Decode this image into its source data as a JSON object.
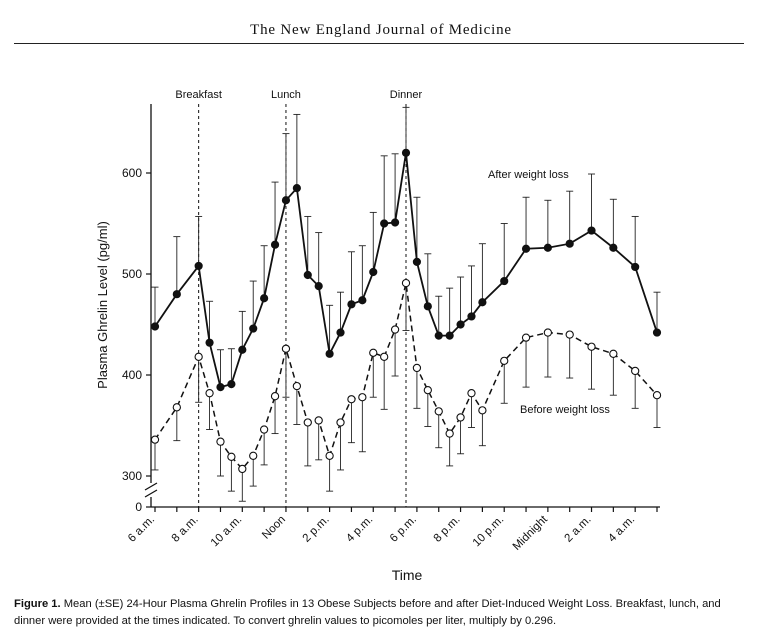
{
  "header": {
    "journal_title": "The New England Journal of Medicine"
  },
  "chart_data": {
    "type": "line",
    "xlabel": "Time",
    "ylabel": "Plasma Ghrelin Level (pg/ml)",
    "x_tick_labels": [
      "6 a.m.",
      "8 a.m.",
      "10 a.m.",
      "Noon",
      "2 p.m.",
      "4 p.m.",
      "6 p.m.",
      "8 p.m.",
      "10 p.m.",
      "Midnight",
      "2 a.m.",
      "4 a.m."
    ],
    "x_tick_hours": [
      6,
      8,
      10,
      12,
      14,
      16,
      18,
      20,
      22,
      24,
      26,
      28
    ],
    "xlim_hours": [
      6,
      29
    ],
    "yticks": [
      300,
      400,
      500,
      600
    ],
    "y_zero_label": "0",
    "ylim": [
      300,
      670
    ],
    "axis_break": true,
    "meals": [
      {
        "label": "Breakfast",
        "hour": 8
      },
      {
        "label": "Lunch",
        "hour": 12
      },
      {
        "label": "Dinner",
        "hour": 17.5
      }
    ],
    "series": [
      {
        "name": "After weight loss",
        "style": "solid-line-filled-circles",
        "x": [
          6,
          7,
          8,
          8.5,
          9,
          9.5,
          10,
          10.5,
          11,
          11.5,
          12,
          12.5,
          13,
          13.5,
          14,
          14.5,
          15,
          15.5,
          16,
          16.5,
          17,
          17.5,
          18,
          18.5,
          19,
          19.5,
          20,
          20.5,
          21,
          22,
          23,
          24,
          25,
          26,
          27,
          28,
          29
        ],
        "y": [
          448,
          480,
          508,
          432,
          388,
          391,
          425,
          446,
          476,
          529,
          573,
          585,
          499,
          488,
          421,
          442,
          470,
          474,
          502,
          550,
          551,
          620,
          512,
          468,
          439,
          439,
          450,
          458,
          472,
          493,
          525,
          526,
          530,
          543,
          526,
          507,
          442
        ],
        "se_upper": [
          487,
          537,
          557,
          473,
          425,
          426,
          463,
          493,
          528,
          591,
          639,
          658,
          557,
          541,
          469,
          482,
          522,
          528,
          561,
          617,
          619,
          665,
          576,
          520,
          478,
          486,
          497,
          508,
          530,
          550,
          576,
          573,
          582,
          599,
          574,
          557,
          482
        ]
      },
      {
        "name": "Before weight loss",
        "style": "dashed-line-open-circles",
        "x": [
          6,
          7,
          8,
          8.5,
          9,
          9.5,
          10,
          10.5,
          11,
          11.5,
          12,
          12.5,
          13,
          13.5,
          14,
          14.5,
          15,
          15.5,
          16,
          16.5,
          17,
          17.5,
          18,
          18.5,
          19,
          19.5,
          20,
          20.5,
          21,
          22,
          23,
          24,
          25,
          26,
          27,
          28,
          29
        ],
        "y": [
          336,
          368,
          418,
          382,
          334,
          319,
          307,
          320,
          346,
          379,
          426,
          389,
          353,
          355,
          320,
          353,
          376,
          378,
          422,
          418,
          445,
          491,
          407,
          385,
          364,
          342,
          358,
          382,
          365,
          414,
          437,
          442,
          440,
          428,
          421,
          404,
          380
        ],
        "se_lower": [
          306,
          335,
          373,
          346,
          300,
          285,
          275,
          290,
          311,
          342,
          378,
          351,
          310,
          316,
          285,
          306,
          333,
          324,
          378,
          366,
          399,
          444,
          367,
          349,
          328,
          310,
          322,
          348,
          330,
          372,
          388,
          398,
          397,
          386,
          380,
          367,
          348
        ]
      }
    ],
    "annotations": [
      {
        "text": "After weight loss"
      },
      {
        "text": "Before weight loss"
      }
    ]
  },
  "caption": {
    "label": "Figure 1.",
    "text": "Mean (±SE) 24-Hour Plasma Ghrelin Profiles in 13 Obese Subjects before and after Diet-Induced Weight Loss. Breakfast, lunch, and dinner were provided at the times indicated. To convert ghrelin values to picomoles per liter, multiply by 0.296."
  }
}
